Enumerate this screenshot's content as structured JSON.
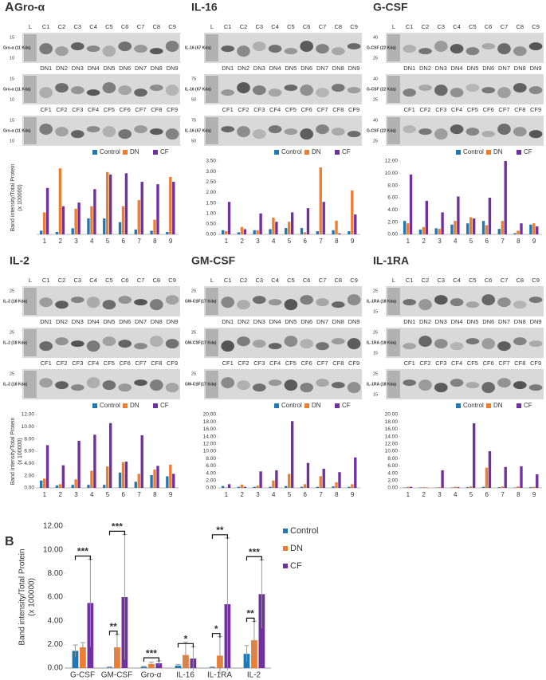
{
  "panel_labels": [
    "A",
    "B"
  ],
  "blots": [
    {
      "title": "Gro-α",
      "rows": [
        {
          "lanes": [
            "L",
            "C1",
            "C2",
            "C3",
            "C4",
            "C5",
            "C6",
            "C7",
            "C8",
            "C9"
          ],
          "band_label": "Gro-α (11 Kda)",
          "markers": [
            "15",
            "10"
          ]
        },
        {
          "lanes": [
            "DN1",
            "DN2",
            "DN3",
            "DN4",
            "DN5",
            "DN6",
            "DN7",
            "DN8",
            "DN9"
          ],
          "band_label": "Gro-α (11 Kda)",
          "markers": [
            "15",
            "10"
          ]
        },
        {
          "lanes": [
            "CF1",
            "CF2",
            "CF3",
            "CF4",
            "CF5",
            "CF6",
            "CF7",
            "CF8",
            "CF9"
          ],
          "band_label": "Gro-α (11 Kda)",
          "markers": [
            "15",
            "10"
          ]
        }
      ]
    },
    {
      "title": "IL-16",
      "rows": [
        {
          "lanes": [
            "L",
            "C1",
            "C2",
            "C3",
            "C4",
            "C5",
            "C6",
            "C7",
            "C8",
            "C9"
          ],
          "band_label": "IL-16 (67 Kda)",
          "markers": []
        },
        {
          "lanes": [
            "DN1",
            "DN2",
            "DN3",
            "DN4",
            "DN5",
            "DN6",
            "DN7",
            "DN8",
            "DN9"
          ],
          "band_label": "IL-16 (67 Kda)",
          "markers": [
            "75",
            "50"
          ]
        },
        {
          "lanes": [
            "CF1",
            "CF2",
            "CF3",
            "CF4",
            "CF5",
            "CF6",
            "CF7",
            "CF8",
            "CF9"
          ],
          "band_label": "IL-16 (67 Kda)",
          "markers": [
            "75",
            "50"
          ]
        }
      ]
    },
    {
      "title": "G-CSF",
      "rows": [
        {
          "lanes": [
            "L",
            "C1",
            "C2",
            "C3",
            "C4",
            "C5",
            "C6",
            "C7",
            "C8",
            "C9"
          ],
          "band_label": "G-CSF (22 Kda)",
          "markers": [
            "40",
            "25"
          ]
        },
        {
          "lanes": [
            "DN1",
            "DN2",
            "DN3",
            "DN4",
            "DN5",
            "DN6",
            "DN7",
            "DN8",
            "DN9"
          ],
          "band_label": "G-CSF (22 Kda)",
          "markers": [
            "40",
            "25"
          ]
        },
        {
          "lanes": [
            "CF1",
            "CF2",
            "CF3",
            "CF4",
            "CF5",
            "CF6",
            "CF7",
            "CF8",
            "CF9"
          ],
          "band_label": "G-CSF (22 Kda)",
          "markers": [
            "40",
            "25"
          ]
        }
      ]
    },
    {
      "title": "IL-2",
      "rows": [
        {
          "lanes": [
            "L",
            "C1",
            "C2",
            "C3",
            "C4",
            "C5",
            "C6",
            "C7",
            "C8",
            "C9"
          ],
          "band_label": "IL-2 (18 Kda)",
          "markers": [
            "25"
          ]
        },
        {
          "lanes": [
            "DN1",
            "DN2",
            "DN3",
            "DN4",
            "DN5",
            "DN6",
            "DN7",
            "DN8",
            "DN9"
          ],
          "band_label": "IL-2 (18 Kda)",
          "markers": [
            "25"
          ]
        },
        {
          "lanes": [
            "CF1",
            "CF2",
            "CF3",
            "CF4",
            "CF5",
            "CF6",
            "CF7",
            "CF8",
            "CF9"
          ],
          "band_label": "IL-2 (18 Kda)",
          "markers": [
            "25"
          ]
        }
      ]
    },
    {
      "title": "GM-CSF",
      "rows": [
        {
          "lanes": [
            "L",
            "C1",
            "C2",
            "C3",
            "C4",
            "C5",
            "C6",
            "C7",
            "C8",
            "C9"
          ],
          "band_label": "GM-CSF(17 Kda)",
          "markers": [
            "25"
          ]
        },
        {
          "lanes": [
            "DN1",
            "DN2",
            "DN3",
            "DN4",
            "DN5",
            "DN6",
            "DN7",
            "DN8",
            "DN9"
          ],
          "band_label": "GM-CSF(17 Kda)",
          "markers": [
            "25"
          ]
        },
        {
          "lanes": [
            "CF1",
            "CF2",
            "CF3",
            "CF4",
            "CF5",
            "CF6",
            "CF7",
            "CF8",
            "CF9"
          ],
          "band_label": "GM-CSF(17 Kda)",
          "markers": [
            "25"
          ]
        }
      ]
    },
    {
      "title": "IL-1RA",
      "rows": [
        {
          "lanes": [
            "L",
            "C1",
            "C2",
            "C3",
            "C4",
            "C5",
            "C6",
            "C7",
            "C8",
            "C9"
          ],
          "band_label": "IL-1RA (18 Kda)",
          "markers": [
            "25",
            "15"
          ]
        },
        {
          "lanes": [
            "DN1",
            "DN2",
            "DN3",
            "DN4",
            "DN5",
            "DN6",
            "DN7",
            "DN8",
            "DN9"
          ],
          "band_label": "IL-1RA (18 Kda)",
          "markers": [
            "25",
            "15"
          ]
        },
        {
          "lanes": [
            "CF1",
            "CF2",
            "CF3",
            "CF4",
            "CF5",
            "CF6",
            "CF7",
            "CF8",
            "CF9"
          ],
          "band_label": "IL-1RA (18 Kda)",
          "markers": [
            "25",
            "15"
          ]
        }
      ]
    }
  ],
  "chart_data": [
    {
      "type": "bar",
      "ylabel": [
        "Band intensity/Total Protein",
        "(x 100000)"
      ],
      "categories": [
        "1",
        "2",
        "3",
        "4",
        "5",
        "6",
        "7",
        "8",
        "9"
      ],
      "ylim": [
        0,
        0.6
      ],
      "series": [
        {
          "name": "Control",
          "color": "#1f77b4",
          "values": [
            0.03,
            0.02,
            0.05,
            0.13,
            0.13,
            0.1,
            0.04,
            0.03,
            0.02
          ]
        },
        {
          "name": "DN",
          "color": "#ed7d31",
          "values": [
            0.18,
            0.54,
            0.21,
            0.23,
            0.51,
            0.23,
            0.28,
            0.12,
            0.47
          ]
        },
        {
          "name": "CF",
          "color": "#7030a0",
          "values": [
            0.38,
            0.23,
            0.26,
            0.37,
            0.49,
            0.5,
            0.43,
            0.41,
            0.43
          ]
        }
      ]
    },
    {
      "type": "bar",
      "categories": [
        "1",
        "2",
        "3",
        "4",
        "5",
        "6",
        "7",
        "8",
        "9"
      ],
      "ylim": [
        0,
        3.5
      ],
      "yticks": [
        {
          "value": 0,
          "label": "0.00"
        },
        {
          "value": 0.5,
          "label": "0.50"
        },
        {
          "value": 1,
          "label": "1.00"
        },
        {
          "value": 1.5,
          "label": "1.50"
        },
        {
          "value": 2,
          "label": "2.00"
        },
        {
          "value": 2.5,
          "label": "2.50"
        },
        {
          "value": 3,
          "label": "3.00"
        },
        {
          "value": 3.5,
          "label": "3.50"
        }
      ],
      "series": [
        {
          "name": "Control",
          "color": "#1f77b4",
          "values": [
            0.2,
            0.1,
            0.2,
            0.25,
            0.3,
            0.3,
            0.15,
            0.2,
            0.15
          ]
        },
        {
          "name": "DN",
          "color": "#ed7d31",
          "values": [
            0.15,
            0.35,
            0.2,
            0.8,
            0.6,
            0.1,
            3.2,
            0.65,
            2.1
          ]
        },
        {
          "name": "CF",
          "color": "#7030a0",
          "values": [
            1.55,
            0.25,
            1.0,
            0.6,
            1.05,
            1.25,
            1.55,
            0.05,
            0.95
          ]
        }
      ]
    },
    {
      "type": "bar",
      "categories": [
        "1",
        "2",
        "3",
        "4",
        "5",
        "6",
        "7",
        "8",
        "9"
      ],
      "ylim": [
        0,
        12
      ],
      "yticks": [
        {
          "value": 0,
          "label": "0.00"
        },
        {
          "value": 2,
          "label": "2.00"
        },
        {
          "value": 4,
          "label": "4.00"
        },
        {
          "value": 6,
          "label": "6.00"
        },
        {
          "value": 8,
          "label": "8.00"
        },
        {
          "value": 10,
          "label": "10.00"
        },
        {
          "value": 12,
          "label": "12.00"
        }
      ],
      "series": [
        {
          "name": "Control",
          "color": "#1f77b4",
          "values": [
            2.2,
            0.8,
            1.0,
            1.6,
            1.8,
            2.2,
            0.9,
            0.2,
            1.6
          ]
        },
        {
          "name": "DN",
          "color": "#ed7d31",
          "values": [
            1.8,
            1.2,
            0.9,
            2.2,
            2.8,
            1.5,
            2.2,
            0.6,
            1.8
          ]
        },
        {
          "name": "CF",
          "color": "#7030a0",
          "values": [
            9.8,
            5.5,
            3.6,
            6.2,
            2.6,
            6.0,
            12.0,
            1.8,
            1.3
          ]
        }
      ]
    },
    {
      "type": "bar",
      "ylabel": [
        "Band intensity/Total Protein",
        "(x 100000)"
      ],
      "categories": [
        "1",
        "2",
        "3",
        "4",
        "5",
        "6",
        "7",
        "8",
        "9"
      ],
      "ylim": [
        0,
        12
      ],
      "yticks": [
        {
          "value": 0,
          "label": "0.00"
        },
        {
          "value": 2,
          "label": "2.00"
        },
        {
          "value": 4,
          "label": "4.00"
        },
        {
          "value": 6,
          "label": "6.00"
        },
        {
          "value": 8,
          "label": "8.00"
        },
        {
          "value": 10,
          "label": "10.00"
        },
        {
          "value": 12,
          "label": "12.00"
        }
      ],
      "series": [
        {
          "name": "Control",
          "color": "#1f77b4",
          "values": [
            1.2,
            0.4,
            0.5,
            0.5,
            0.5,
            2.5,
            1.0,
            2.1,
            1.9
          ]
        },
        {
          "name": "DN",
          "color": "#ed7d31",
          "values": [
            1.5,
            0.6,
            1.4,
            2.8,
            3.5,
            4.2,
            2.3,
            3.0,
            3.8
          ]
        },
        {
          "name": "CF",
          "color": "#7030a0",
          "values": [
            7.0,
            3.7,
            7.7,
            8.7,
            10.6,
            4.3,
            8.6,
            3.6,
            2.3
          ]
        }
      ]
    },
    {
      "type": "bar",
      "categories": [
        "1",
        "2",
        "3",
        "4",
        "5",
        "6",
        "7",
        "8",
        "9"
      ],
      "ylim": [
        0,
        20
      ],
      "yticks": [
        {
          "value": 0,
          "label": "0.00"
        },
        {
          "value": 2,
          "label": "2.00"
        },
        {
          "value": 4,
          "label": "4.00"
        },
        {
          "value": 6,
          "label": "6.00"
        },
        {
          "value": 8,
          "label": "8.00"
        },
        {
          "value": 10,
          "label": "10.00"
        },
        {
          "value": 12,
          "label": "12.00"
        },
        {
          "value": 14,
          "label": "14.00"
        },
        {
          "value": 16,
          "label": "16.00"
        },
        {
          "value": 18,
          "label": "18.00"
        },
        {
          "value": 20,
          "label": "20.00"
        }
      ],
      "series": [
        {
          "name": "Control",
          "color": "#1f77b4",
          "values": [
            0.5,
            0.3,
            0.3,
            0.3,
            0.5,
            0.3,
            0.3,
            0.4,
            0.3
          ]
        },
        {
          "name": "DN",
          "color": "#ed7d31",
          "values": [
            0.1,
            0.9,
            0.6,
            2.0,
            3.8,
            1.0,
            3.2,
            1.5,
            1.0
          ]
        },
        {
          "name": "CF",
          "color": "#7030a0",
          "values": [
            1.0,
            0.3,
            4.5,
            4.8,
            18.2,
            6.8,
            5.2,
            4.3,
            8.3
          ]
        }
      ]
    },
    {
      "type": "bar",
      "categories": [
        "1",
        "2",
        "3",
        "4",
        "5",
        "6",
        "7",
        "8",
        "9"
      ],
      "ylim": [
        0,
        20
      ],
      "yticks": [
        {
          "value": 0,
          "label": "0.00"
        },
        {
          "value": 2,
          "label": "2.00"
        },
        {
          "value": 4,
          "label": "4.00"
        },
        {
          "value": 6,
          "label": "6.00"
        },
        {
          "value": 8,
          "label": "8.00"
        },
        {
          "value": 10,
          "label": "10.00"
        },
        {
          "value": 12,
          "label": "12.00"
        },
        {
          "value": 14,
          "label": "14.00"
        },
        {
          "value": 16,
          "label": "16.00"
        },
        {
          "value": 18,
          "label": "18.00"
        },
        {
          "value": 20,
          "label": "20.00"
        }
      ],
      "series": [
        {
          "name": "Control",
          "color": "#1f77b4",
          "values": [
            0.1,
            0.1,
            0.1,
            0.1,
            0.2,
            0.3,
            0.2,
            0.1,
            0.2
          ]
        },
        {
          "name": "DN",
          "color": "#ed7d31",
          "values": [
            0.3,
            0.2,
            0.2,
            0.3,
            0.4,
            5.5,
            0.4,
            0.4,
            0.3
          ]
        },
        {
          "name": "CF",
          "color": "#7030a0",
          "values": [
            0.3,
            0.1,
            4.8,
            0.2,
            17.6,
            10.0,
            5.7,
            5.9,
            3.7
          ]
        }
      ]
    },
    {
      "type": "errorbar",
      "ylabel": [
        "Band intensity/Total Protein",
        "(x 100000)"
      ],
      "categories": [
        "G-CSF",
        "GM-CSF",
        "Gro-α",
        "IL-16",
        "IL-1RA",
        "IL-2"
      ],
      "ylim": [
        0,
        12
      ],
      "yticks": [
        {
          "value": 0,
          "label": "0.00"
        },
        {
          "value": 2,
          "label": "2.00"
        },
        {
          "value": 4,
          "label": "4.00"
        },
        {
          "value": 6,
          "label": "6.00"
        },
        {
          "value": 8,
          "label": "8.00"
        },
        {
          "value": 10,
          "label": "10.00"
        },
        {
          "value": 12,
          "label": "12.00"
        }
      ],
      "series": [
        {
          "name": "Control",
          "color": "#1f77b4",
          "values": [
            1.45,
            0.05,
            0.1,
            0.2,
            0.05,
            1.2
          ],
          "errors": [
            0.5,
            0.05,
            0.05,
            0.1,
            0.05,
            0.7
          ]
        },
        {
          "name": "DN",
          "color": "#ed7d31",
          "values": [
            1.75,
            1.75,
            0.35,
            1.1,
            1.05,
            2.35
          ],
          "errors": [
            0.4,
            1.1,
            0.15,
            1.1,
            1.6,
            1.6
          ]
        },
        {
          "name": "CF",
          "color": "#7030a0",
          "values": [
            5.5,
            6.0,
            0.4,
            0.8,
            5.4,
            6.25
          ],
          "errors": [
            3.7,
            5.3,
            0.2,
            1.0,
            5.6,
            2.9
          ]
        }
      ],
      "significance": [
        [
          "***"
        ],
        [
          "***",
          "**"
        ],
        [
          "***"
        ],
        [
          "*"
        ],
        [
          "**",
          "*"
        ],
        [
          "***",
          "**"
        ]
      ]
    }
  ]
}
